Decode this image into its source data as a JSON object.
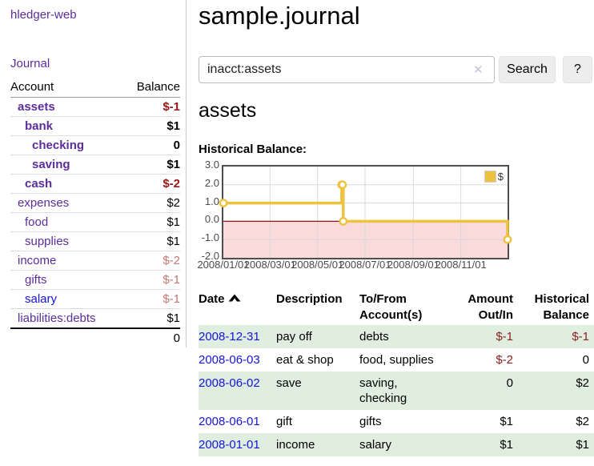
{
  "app": {
    "brand": "hledger-web",
    "title": "sample.journal"
  },
  "sidebar": {
    "nav": [
      {
        "label": "Journal"
      }
    ],
    "accounts_table": {
      "headers": [
        "Account",
        "Balance"
      ],
      "rows": [
        {
          "account": "assets",
          "indent": 1,
          "bold": true,
          "link_color": "purple",
          "balance": "$-1",
          "balance_class": "neg-strong"
        },
        {
          "account": "bank",
          "indent": 2,
          "bold": true,
          "link_color": "purple",
          "balance": "$1",
          "balance_class": ""
        },
        {
          "account": "checking",
          "indent": 3,
          "bold": true,
          "link_color": "purple",
          "balance": "0",
          "balance_class": ""
        },
        {
          "account": "saving",
          "indent": 3,
          "bold": true,
          "link_color": "purple",
          "balance": "$1",
          "balance_class": ""
        },
        {
          "account": "cash",
          "indent": 2,
          "bold": true,
          "link_color": "purple",
          "balance": "$-2",
          "balance_class": "neg-strong"
        },
        {
          "account": "expenses",
          "indent": 1,
          "bold": false,
          "link_color": "purple",
          "balance": "$2",
          "balance_class": ""
        },
        {
          "account": "food",
          "indent": 2,
          "bold": false,
          "link_color": "purple",
          "balance": "$1",
          "balance_class": ""
        },
        {
          "account": "supplies",
          "indent": 2,
          "bold": false,
          "link_color": "purple",
          "balance": "$1",
          "balance_class": ""
        },
        {
          "account": "income",
          "indent": 1,
          "bold": false,
          "link_color": "purple",
          "balance": "$-2",
          "balance_class": "neg-soft"
        },
        {
          "account": "gifts",
          "indent": 2,
          "bold": false,
          "link_color": "purple",
          "balance": "$-1",
          "balance_class": "neg-soft"
        },
        {
          "account": "salary",
          "indent": 2,
          "bold": false,
          "link_color": "blue",
          "balance": "$-1",
          "balance_class": "neg-soft"
        },
        {
          "account": "liabilities:debts",
          "indent": 1,
          "bold": false,
          "link_color": "purple",
          "balance": "$1",
          "balance_class": ""
        }
      ],
      "total": "0"
    }
  },
  "search": {
    "value": "inacct:assets",
    "clear_icon": "✕",
    "button_label": "Search",
    "help_label": "?"
  },
  "main": {
    "account_heading": "assets",
    "balance_label": "Historical Balance:"
  },
  "chart_data": {
    "type": "line",
    "step": true,
    "title": "Historical Balance:",
    "series": [
      {
        "name": "$",
        "color": "#edc240",
        "points": [
          [
            "2008-01-01",
            1
          ],
          [
            "2008-06-01",
            2
          ],
          [
            "2008-06-02",
            2
          ],
          [
            "2008-06-03",
            0
          ],
          [
            "2008-12-31",
            -1
          ]
        ]
      }
    ],
    "x_ticks": [
      "2008/01/01",
      "2008/03/01",
      "2008/05/01",
      "2008/07/01",
      "2008/09/01",
      "2008/11/01"
    ],
    "y_ticks": [
      3.0,
      2.0,
      1.0,
      0.0,
      -1.0,
      -2.0
    ],
    "ylim": [
      -2,
      3
    ],
    "xlim": [
      "2008-01-01",
      "2008-12-31"
    ],
    "grid": true,
    "legend_position": "top-right",
    "negative_region_color": "#fadbdb",
    "zero_line_color": "#991111"
  },
  "register": {
    "headers": {
      "date": "Date",
      "description": "Description",
      "accounts": "To/From Account(s)",
      "amount": "Amount Out/In",
      "balance": "Historical Balance"
    },
    "sort_icon": "chevron-up",
    "rows": [
      {
        "date": "2008-12-31",
        "description": "pay off",
        "accounts": "debts",
        "amount": "$-1",
        "amount_negative": true,
        "balance": "$-1",
        "balance_negative": true
      },
      {
        "date": "2008-06-03",
        "description": "eat & shop",
        "accounts": "food, supplies",
        "amount": "$-2",
        "amount_negative": true,
        "balance": "0",
        "balance_negative": false
      },
      {
        "date": "2008-06-02",
        "description": "save",
        "accounts": "saving,\nchecking",
        "amount": "0",
        "amount_negative": false,
        "balance": "$2",
        "balance_negative": false
      },
      {
        "date": "2008-06-01",
        "description": "gift",
        "accounts": "gifts",
        "amount": "$1",
        "amount_negative": false,
        "balance": "$2",
        "balance_negative": false
      },
      {
        "date": "2008-01-01",
        "description": "income",
        "accounts": "salary",
        "amount": "$1",
        "amount_negative": false,
        "balance": "$1",
        "balance_negative": false
      }
    ]
  }
}
